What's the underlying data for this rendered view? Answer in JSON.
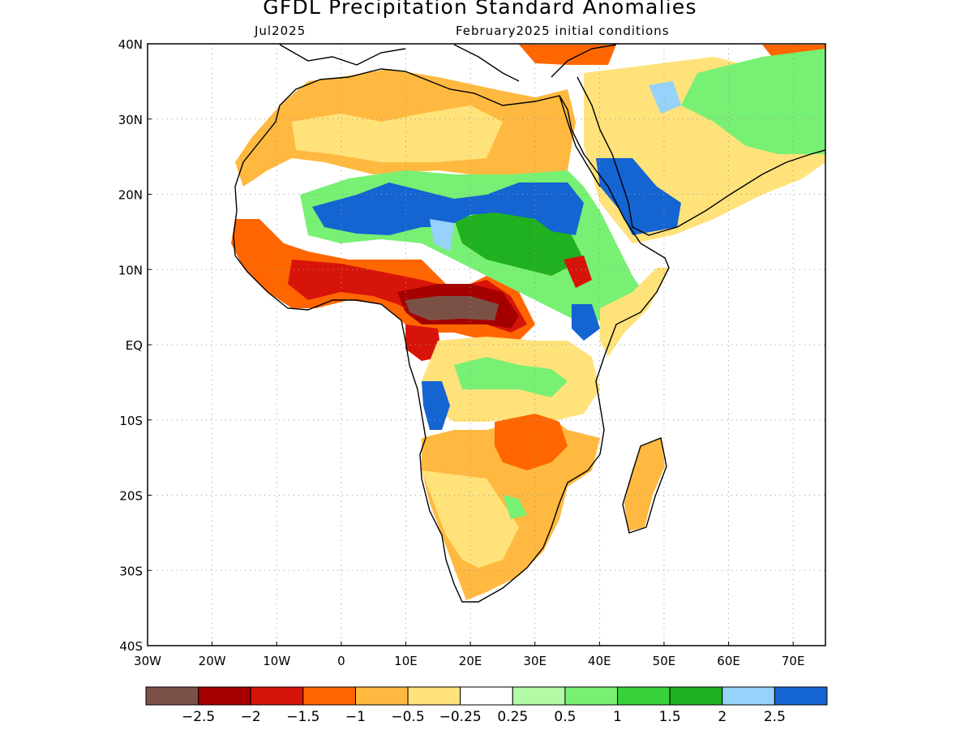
{
  "title": "GFDL Precipitation Standard Anomalies",
  "subtitle_left": "Jul2025",
  "subtitle_right": "February2025 initial conditions",
  "lat_labels": [
    "40N",
    "30N",
    "20N",
    "10N",
    "EQ",
    "10S",
    "20S",
    "30S",
    "40S"
  ],
  "lon_labels": [
    "30W",
    "20W",
    "10W",
    "0",
    "10E",
    "20E",
    "30E",
    "40E",
    "50E",
    "60E",
    "70E"
  ],
  "colorbar": {
    "colors": [
      "#7b5146",
      "#a50000",
      "#d7140a",
      "#ff6600",
      "#ffb940",
      "#ffe27a",
      "#ffffff",
      "#b3faa6",
      "#78f073",
      "#37d13b",
      "#1fb11f",
      "#96d2fa",
      "#1464d2"
    ],
    "labels": [
      "−2.5",
      "−2",
      "−1.5",
      "−1",
      "−0.5",
      "−0.25",
      "0.25",
      "0.5",
      "1",
      "1.5",
      "2",
      "2.5"
    ]
  },
  "colors": {
    "land_white": "#ffffff",
    "coast": "#000000",
    "frame": "#000000",
    "grid": "#999999"
  }
}
